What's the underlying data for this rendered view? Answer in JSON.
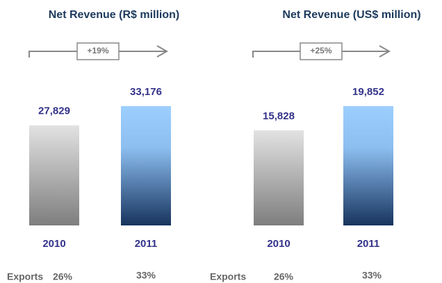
{
  "chart_data": [
    {
      "type": "bar",
      "title": "Net Revenue (R$ million)",
      "categories": [
        "2010",
        "2011"
      ],
      "values": [
        27829,
        33176
      ],
      "value_labels": [
        "27,829",
        "33,176"
      ],
      "annotation": "+19%",
      "exports": {
        "label": "Exports",
        "values": [
          26,
          33
        ],
        "value_labels": [
          "26%",
          "33%"
        ]
      }
    },
    {
      "type": "bar",
      "title": "Net Revenue (US$ million)",
      "categories": [
        "2010",
        "2011"
      ],
      "values": [
        15828,
        19852
      ],
      "value_labels": [
        "15,828",
        "19,852"
      ],
      "annotation": "+25%",
      "exports": {
        "label": "Exports",
        "values": [
          26,
          33
        ],
        "value_labels": [
          "26%",
          "33%"
        ]
      }
    }
  ]
}
